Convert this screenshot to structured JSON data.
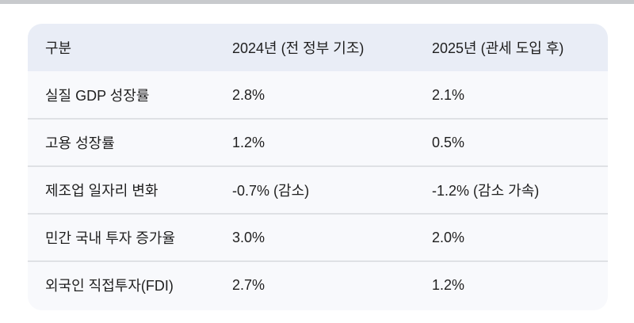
{
  "table": {
    "headers": [
      "구분",
      "2024년 (전 정부 기조)",
      "2025년 (관세 도입 후)"
    ],
    "rows": [
      [
        "실질 GDP 성장률",
        "2.8%",
        "2.1%"
      ],
      [
        "고용 성장률",
        "1.2%",
        "0.5%"
      ],
      [
        "제조업 일자리 변화",
        "-0.7% (감소)",
        "-1.2% (감소 가속)"
      ],
      [
        "민간 국내 투자 증가율",
        "3.0%",
        "2.0%"
      ],
      [
        "외국인 직접투자(FDI)",
        "2.7%",
        "1.2%"
      ]
    ]
  },
  "colors": {
    "header_bg": "#e9edf6",
    "body_bg": "#f8f9fc",
    "divider": "#dfe1e5"
  }
}
